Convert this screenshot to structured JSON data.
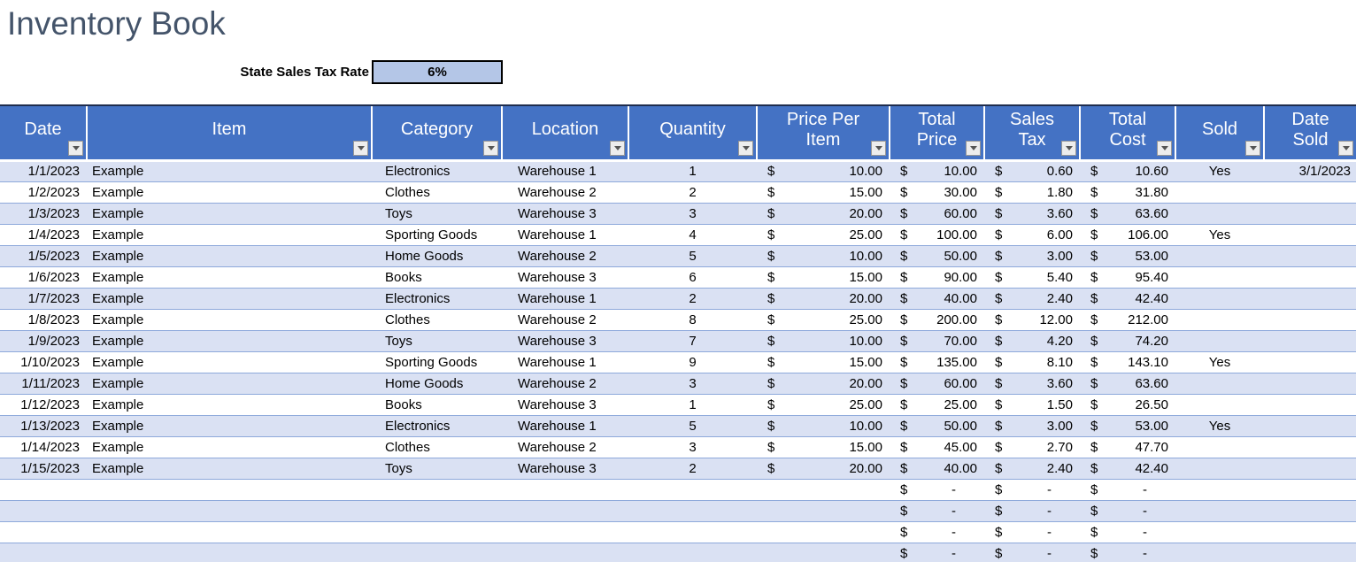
{
  "title": "Inventory Book",
  "tax": {
    "label": "State Sales Tax Rate",
    "value": "6%"
  },
  "colors": {
    "header_blue": "#4472C4",
    "band_row": "#DAE1F3",
    "row_border": "#8EA9DB",
    "tax_box_fill": "#B4C6E7",
    "title_text": "#44546A"
  },
  "table": {
    "columns": [
      {
        "key": "date",
        "label": "Date",
        "format": "text"
      },
      {
        "key": "item",
        "label": "Item",
        "format": "text"
      },
      {
        "key": "category",
        "label": "Category",
        "format": "text"
      },
      {
        "key": "location",
        "label": "Location",
        "format": "text"
      },
      {
        "key": "quantity",
        "label": "Quantity",
        "format": "text"
      },
      {
        "key": "price_per_item",
        "label": "Price Per Item",
        "format": "currency"
      },
      {
        "key": "total_price",
        "label": "Total Price",
        "format": "currency"
      },
      {
        "key": "sales_tax",
        "label": "Sales Tax",
        "format": "currency"
      },
      {
        "key": "total_cost",
        "label": "Total Cost",
        "format": "currency"
      },
      {
        "key": "sold",
        "label": "Sold",
        "format": "text"
      },
      {
        "key": "date_sold",
        "label": "Date Sold",
        "format": "text"
      }
    ],
    "currency_symbol": "$",
    "rows": [
      [
        "1/1/2023",
        "Example",
        "Electronics",
        "Warehouse 1",
        "1",
        "10.00",
        "10.00",
        "0.60",
        "10.60",
        "Yes",
        "3/1/2023"
      ],
      [
        "1/2/2023",
        "Example",
        "Clothes",
        "Warehouse 2",
        "2",
        "15.00",
        "30.00",
        "1.80",
        "31.80",
        "",
        ""
      ],
      [
        "1/3/2023",
        "Example",
        "Toys",
        "Warehouse 3",
        "3",
        "20.00",
        "60.00",
        "3.60",
        "63.60",
        "",
        ""
      ],
      [
        "1/4/2023",
        "Example",
        "Sporting Goods",
        "Warehouse 1",
        "4",
        "25.00",
        "100.00",
        "6.00",
        "106.00",
        "Yes",
        ""
      ],
      [
        "1/5/2023",
        "Example",
        "Home Goods",
        "Warehouse 2",
        "5",
        "10.00",
        "50.00",
        "3.00",
        "53.00",
        "",
        ""
      ],
      [
        "1/6/2023",
        "Example",
        "Books",
        "Warehouse 3",
        "6",
        "15.00",
        "90.00",
        "5.40",
        "95.40",
        "",
        ""
      ],
      [
        "1/7/2023",
        "Example",
        "Electronics",
        "Warehouse 1",
        "2",
        "20.00",
        "40.00",
        "2.40",
        "42.40",
        "",
        ""
      ],
      [
        "1/8/2023",
        "Example",
        "Clothes",
        "Warehouse 2",
        "8",
        "25.00",
        "200.00",
        "12.00",
        "212.00",
        "",
        ""
      ],
      [
        "1/9/2023",
        "Example",
        "Toys",
        "Warehouse 3",
        "7",
        "10.00",
        "70.00",
        "4.20",
        "74.20",
        "",
        ""
      ],
      [
        "1/10/2023",
        "Example",
        "Sporting Goods",
        "Warehouse 1",
        "9",
        "15.00",
        "135.00",
        "8.10",
        "143.10",
        "Yes",
        ""
      ],
      [
        "1/11/2023",
        "Example",
        "Home Goods",
        "Warehouse 2",
        "3",
        "20.00",
        "60.00",
        "3.60",
        "63.60",
        "",
        ""
      ],
      [
        "1/12/2023",
        "Example",
        "Books",
        "Warehouse 3",
        "1",
        "25.00",
        "25.00",
        "1.50",
        "26.50",
        "",
        ""
      ],
      [
        "1/13/2023",
        "Example",
        "Electronics",
        "Warehouse 1",
        "5",
        "10.00",
        "50.00",
        "3.00",
        "53.00",
        "Yes",
        ""
      ],
      [
        "1/14/2023",
        "Example",
        "Clothes",
        "Warehouse 2",
        "3",
        "15.00",
        "45.00",
        "2.70",
        "47.70",
        "",
        ""
      ],
      [
        "1/15/2023",
        "Example",
        "Toys",
        "Warehouse 3",
        "2",
        "20.00",
        "40.00",
        "2.40",
        "42.40",
        "",
        ""
      ],
      [
        "",
        "",
        "",
        "",
        "",
        "",
        "-",
        "-",
        "-",
        "",
        ""
      ],
      [
        "",
        "",
        "",
        "",
        "",
        "",
        "-",
        "-",
        "-",
        "",
        ""
      ],
      [
        "",
        "",
        "",
        "",
        "",
        "",
        "-",
        "-",
        "-",
        "",
        ""
      ],
      [
        "",
        "",
        "",
        "",
        "",
        "",
        "-",
        "-",
        "-",
        "",
        ""
      ]
    ]
  }
}
